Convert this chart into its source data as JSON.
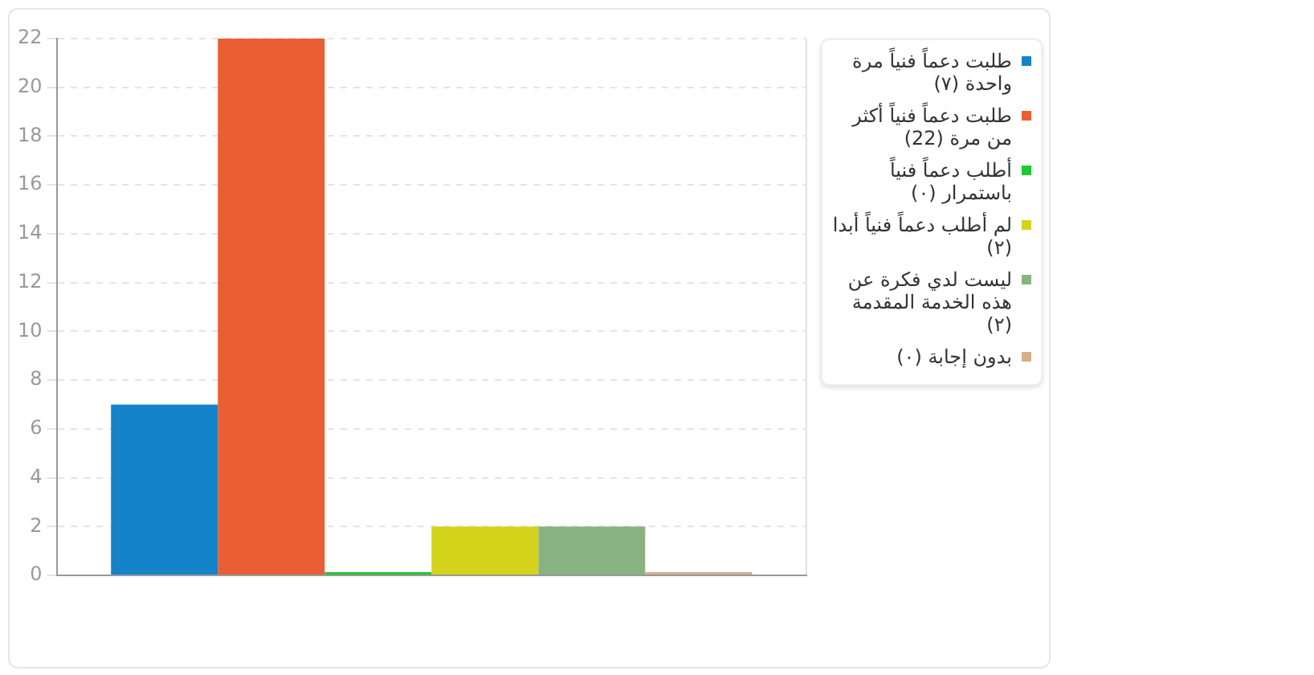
{
  "chart_data": {
    "type": "bar",
    "categories": [
      null
    ],
    "series": [
      {
        "name": "طلبت دعماً فنياً مرة واحدة (٧)",
        "color": "#1483c9",
        "values": [
          7
        ]
      },
      {
        "name": "طلبت دعماً فنياً أكثر من مرة (22)",
        "color": "#e95f33",
        "values": [
          22
        ]
      },
      {
        "name": "أطلب دعماً فنياً باستمرار (٠)",
        "color": "#1dc92c",
        "values": [
          0
        ]
      },
      {
        "name": "لم أطلب دعماً فنياً أبدا (٢)",
        "color": "#d4d31c",
        "values": [
          2
        ]
      },
      {
        "name": "ليست لدي فكرة عن هذه الخدمة المقدمة (٢)",
        "color": "#88b280",
        "values": [
          2
        ]
      },
      {
        "name": "بدون إجابة (٠)",
        "color": "#d7b08a",
        "values": [
          0
        ]
      }
    ],
    "ylim": [
      0,
      22
    ],
    "yticks": [
      0,
      2,
      4,
      6,
      8,
      10,
      12,
      14,
      16,
      18,
      20,
      22
    ],
    "grid": true,
    "legend": "right"
  }
}
